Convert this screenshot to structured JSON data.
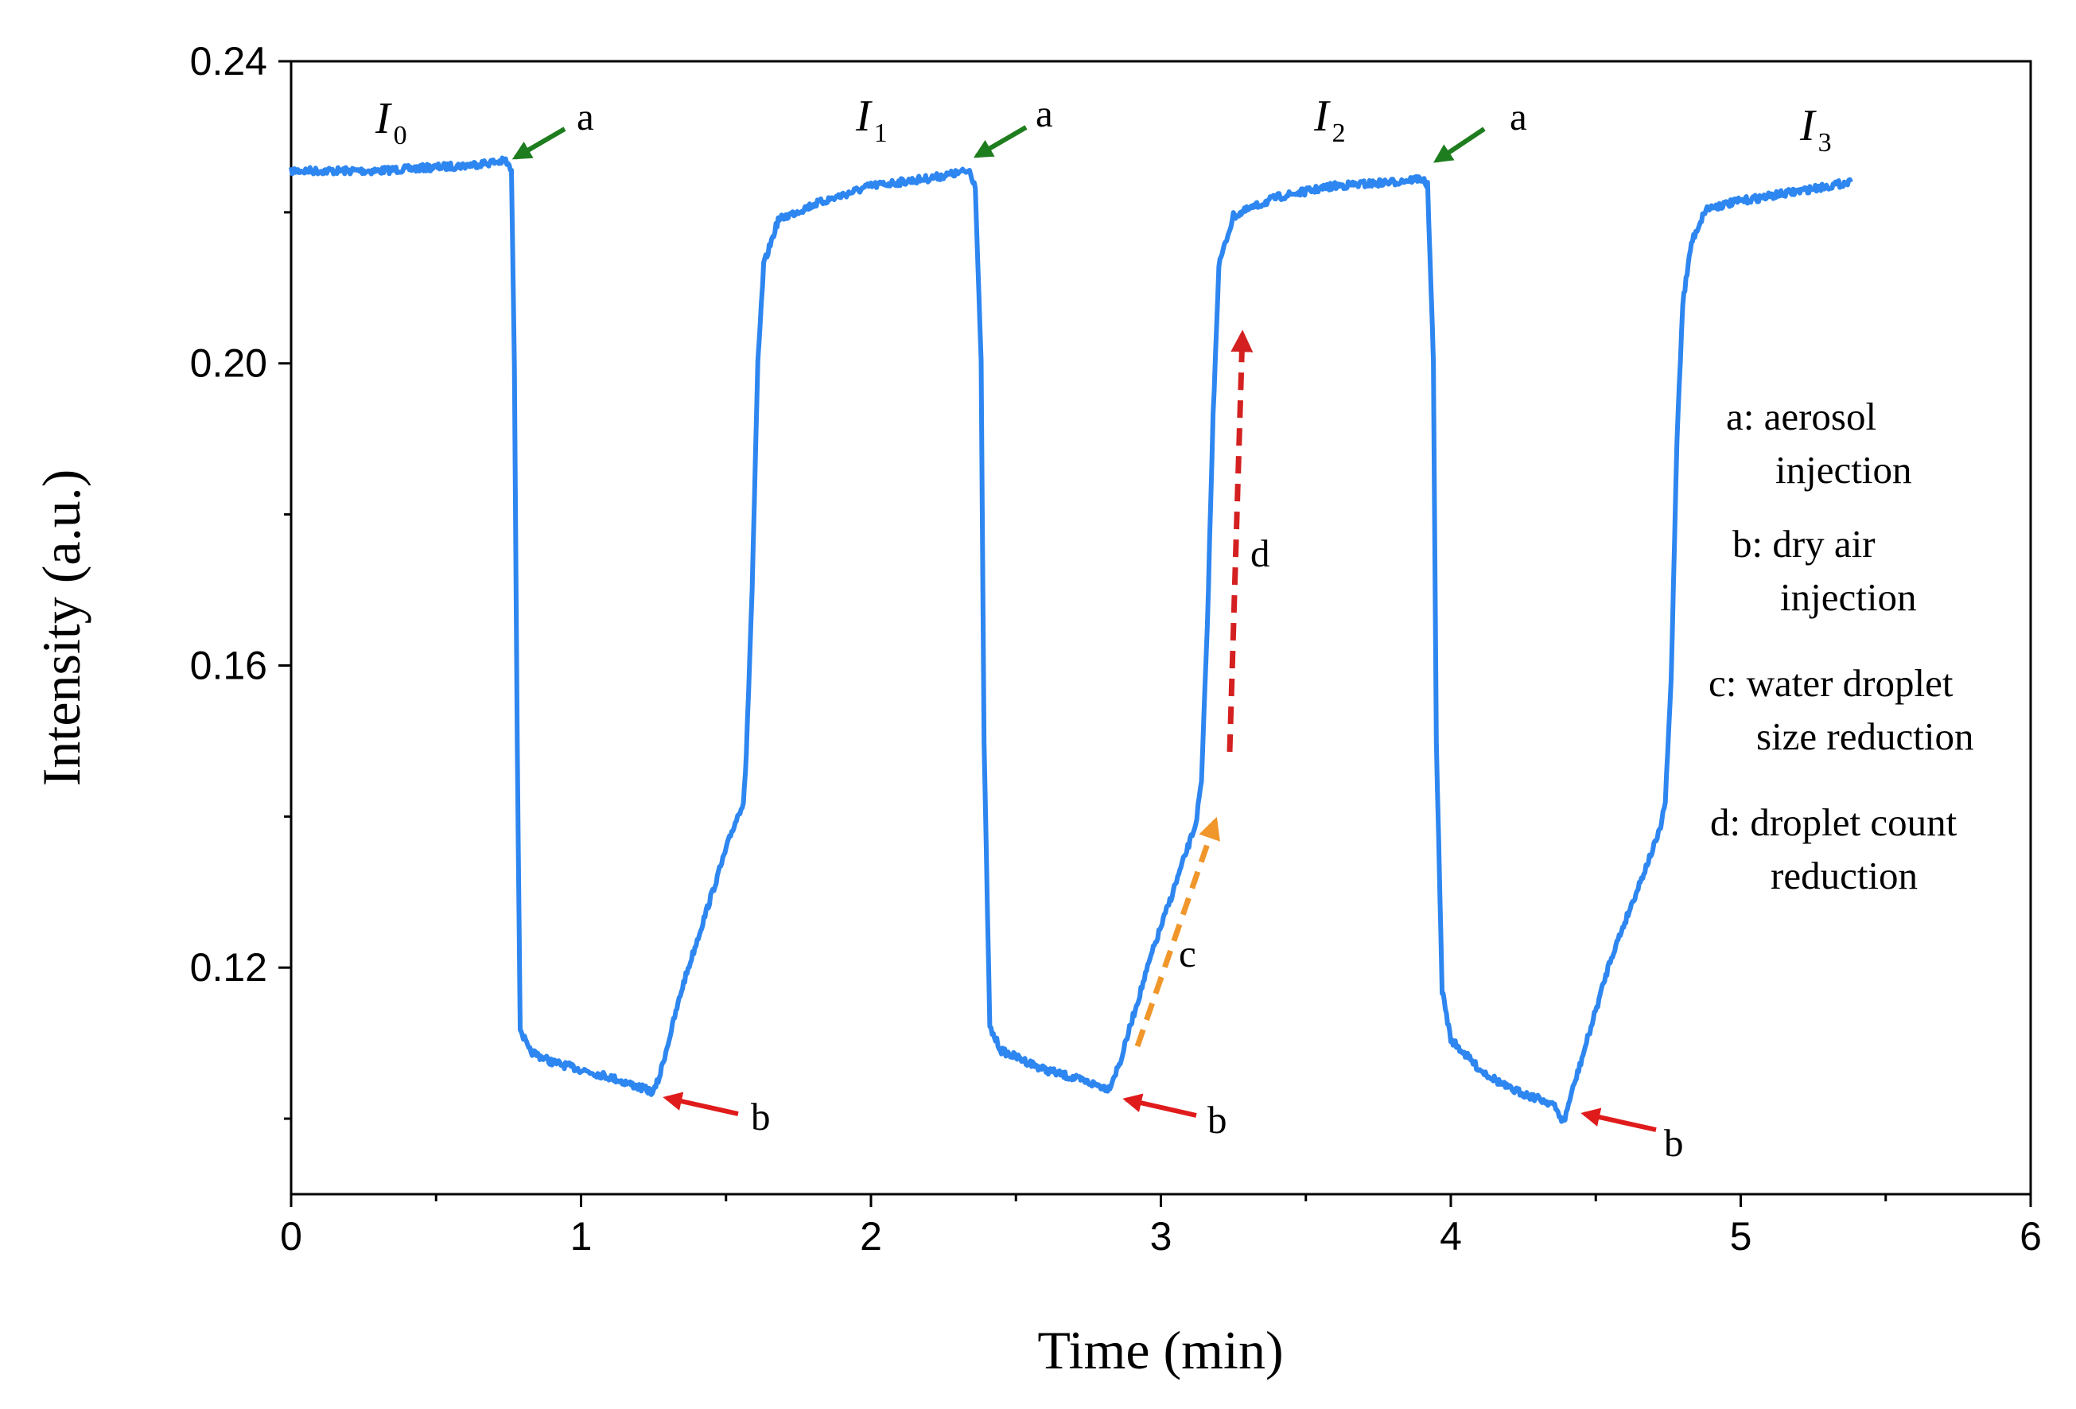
{
  "chart_data": {
    "type": "line",
    "title": "",
    "xlabel": "Time (min)",
    "ylabel": "Intensity (a.u.)",
    "xlim": [
      0,
      6
    ],
    "ylim": [
      0.09,
      0.24
    ],
    "x_ticks": [
      "0",
      "1",
      "2",
      "3",
      "4",
      "5",
      "6"
    ],
    "y_ticks": [
      "0.12",
      "0.16",
      "0.20",
      "0.24"
    ],
    "grid": false,
    "series": [
      {
        "name": "Intensity",
        "color": "#2e86f0",
        "points": [
          [
            0.0,
            0.2255
          ],
          [
            0.3,
            0.2255
          ],
          [
            0.6,
            0.2262
          ],
          [
            0.74,
            0.2268
          ],
          [
            0.76,
            0.2255
          ],
          [
            0.77,
            0.2
          ],
          [
            0.78,
            0.15
          ],
          [
            0.79,
            0.112
          ],
          [
            0.82,
            0.109
          ],
          [
            0.9,
            0.1075
          ],
          [
            1.1,
            0.1055
          ],
          [
            1.25,
            0.1035
          ],
          [
            1.27,
            0.1055
          ],
          [
            1.3,
            0.11
          ],
          [
            1.35,
            0.1175
          ],
          [
            1.42,
            0.126
          ],
          [
            1.52,
            0.138
          ],
          [
            1.56,
            0.142
          ],
          [
            1.57,
            0.148
          ],
          [
            1.59,
            0.17
          ],
          [
            1.61,
            0.2
          ],
          [
            1.63,
            0.213
          ],
          [
            1.68,
            0.219
          ],
          [
            1.8,
            0.221
          ],
          [
            2.0,
            0.2235
          ],
          [
            2.2,
            0.2245
          ],
          [
            2.3,
            0.2252
          ],
          [
            2.34,
            0.2255
          ],
          [
            2.36,
            0.2235
          ],
          [
            2.38,
            0.2
          ],
          [
            2.39,
            0.15
          ],
          [
            2.41,
            0.112
          ],
          [
            2.45,
            0.109
          ],
          [
            2.6,
            0.1065
          ],
          [
            2.82,
            0.104
          ],
          [
            2.86,
            0.1075
          ],
          [
            2.9,
            0.113
          ],
          [
            2.97,
            0.122
          ],
          [
            3.05,
            0.131
          ],
          [
            3.12,
            0.139
          ],
          [
            3.14,
            0.1445
          ],
          [
            3.16,
            0.165
          ],
          [
            3.18,
            0.193
          ],
          [
            3.2,
            0.213
          ],
          [
            3.25,
            0.2195
          ],
          [
            3.4,
            0.222
          ],
          [
            3.6,
            0.2235
          ],
          [
            3.8,
            0.224
          ],
          [
            3.9,
            0.2245
          ],
          [
            3.92,
            0.2235
          ],
          [
            3.94,
            0.2
          ],
          [
            3.95,
            0.15
          ],
          [
            3.97,
            0.117
          ],
          [
            4.0,
            0.1105
          ],
          [
            4.1,
            0.1065
          ],
          [
            4.2,
            0.104
          ],
          [
            4.35,
            0.102
          ],
          [
            4.39,
            0.0995
          ],
          [
            4.41,
            0.1025
          ],
          [
            4.46,
            0.109
          ],
          [
            4.55,
            0.121
          ],
          [
            4.65,
            0.131
          ],
          [
            4.72,
            0.138
          ],
          [
            4.74,
            0.142
          ],
          [
            4.76,
            0.158
          ],
          [
            4.78,
            0.19
          ],
          [
            4.8,
            0.208
          ],
          [
            4.83,
            0.216
          ],
          [
            4.88,
            0.2205
          ],
          [
            5.0,
            0.2215
          ],
          [
            5.2,
            0.2228
          ],
          [
            5.38,
            0.224
          ]
        ]
      }
    ],
    "annotations": [
      {
        "id": "a1",
        "text": "a",
        "color": "#1e7d1e",
        "points_to": [
          0.75,
          0.2268
        ]
      },
      {
        "id": "a2",
        "text": "a",
        "color": "#1e7d1e",
        "points_to": [
          2.34,
          0.2255
        ]
      },
      {
        "id": "a3",
        "text": "a",
        "color": "#1e7d1e",
        "points_to": [
          3.9,
          0.2245
        ]
      },
      {
        "id": "b1",
        "text": "b",
        "color": "#e01b1b",
        "points_to": [
          1.27,
          0.1035
        ]
      },
      {
        "id": "b2",
        "text": "b",
        "color": "#e01b1b",
        "points_to": [
          2.84,
          0.1035
        ]
      },
      {
        "id": "b3",
        "text": "b",
        "color": "#e01b1b",
        "points_to": [
          4.41,
          0.1005
        ]
      },
      {
        "id": "c",
        "text": "c",
        "color": "#f0962a",
        "dashed": true,
        "from": [
          2.88,
          0.11
        ],
        "to": [
          3.09,
          0.1395
        ]
      },
      {
        "id": "d",
        "text": "d",
        "color": "#d42020",
        "dashed": true,
        "from": [
          3.23,
          0.148
        ],
        "to": [
          3.27,
          0.2035
        ]
      }
    ],
    "intensity_labels": [
      {
        "id": "I0",
        "main": "I",
        "sub": "0"
      },
      {
        "id": "I1",
        "main": "I",
        "sub": "1"
      },
      {
        "id": "I2",
        "main": "I",
        "sub": "2"
      },
      {
        "id": "I3",
        "main": "I",
        "sub": "3"
      }
    ],
    "legend_notes": [
      {
        "key": "a",
        "lines": [
          "a: aerosol",
          "injection"
        ]
      },
      {
        "key": "b",
        "lines": [
          "b: dry air",
          "injection"
        ]
      },
      {
        "key": "c",
        "lines": [
          "c: water droplet",
          "size reduction"
        ]
      },
      {
        "key": "d",
        "lines": [
          "d: droplet count",
          "reduction"
        ]
      }
    ]
  }
}
